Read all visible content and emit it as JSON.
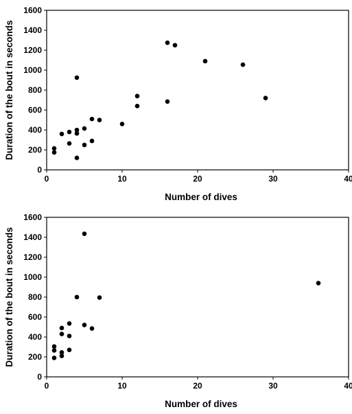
{
  "chart_data": [
    {
      "type": "scatter",
      "title": "",
      "xlabel": "Number of dives",
      "ylabel": "Duration of the bout in seconds",
      "xlim": [
        0,
        40
      ],
      "ylim": [
        0,
        1600
      ],
      "xticks": [
        0,
        10,
        20,
        30,
        40
      ],
      "yticks": [
        0,
        200,
        400,
        600,
        800,
        1000,
        1200,
        1400,
        1600
      ],
      "grid": false,
      "legend": "none",
      "series": [
        {
          "points": [
            [
              1,
              215
            ],
            [
              1,
              175
            ],
            [
              2,
              360
            ],
            [
              3,
              380
            ],
            [
              3,
              265
            ],
            [
              4,
              400
            ],
            [
              4,
              365
            ],
            [
              4,
              120
            ],
            [
              4,
              925
            ],
            [
              5,
              415
            ],
            [
              5,
              250
            ],
            [
              6,
              510
            ],
            [
              6,
              290
            ],
            [
              7,
              500
            ],
            [
              10,
              460
            ],
            [
              12,
              740
            ],
            [
              12,
              640
            ],
            [
              16,
              1275
            ],
            [
              16,
              685
            ],
            [
              17,
              1250
            ],
            [
              21,
              1090
            ],
            [
              26,
              1055
            ],
            [
              29,
              720
            ]
          ]
        }
      ]
    },
    {
      "type": "scatter",
      "title": "",
      "xlabel": "Number of dives",
      "ylabel": "Duration of the bout in seconds",
      "xlim": [
        0,
        40
      ],
      "ylim": [
        0,
        1600
      ],
      "xticks": [
        0,
        10,
        20,
        30,
        40
      ],
      "yticks": [
        0,
        200,
        400,
        600,
        800,
        1000,
        1200,
        1400,
        1600
      ],
      "grid": false,
      "legend": "none",
      "series": [
        {
          "points": [
            [
              1,
              305
            ],
            [
              1,
              265
            ],
            [
              1,
              190
            ],
            [
              2,
              490
            ],
            [
              2,
              430
            ],
            [
              2,
              245
            ],
            [
              2,
              210
            ],
            [
              3,
              535
            ],
            [
              3,
              410
            ],
            [
              3,
              270
            ],
            [
              4,
              800
            ],
            [
              5,
              1435
            ],
            [
              5,
              520
            ],
            [
              6,
              485
            ],
            [
              7,
              795
            ],
            [
              36,
              940
            ]
          ]
        }
      ]
    }
  ]
}
